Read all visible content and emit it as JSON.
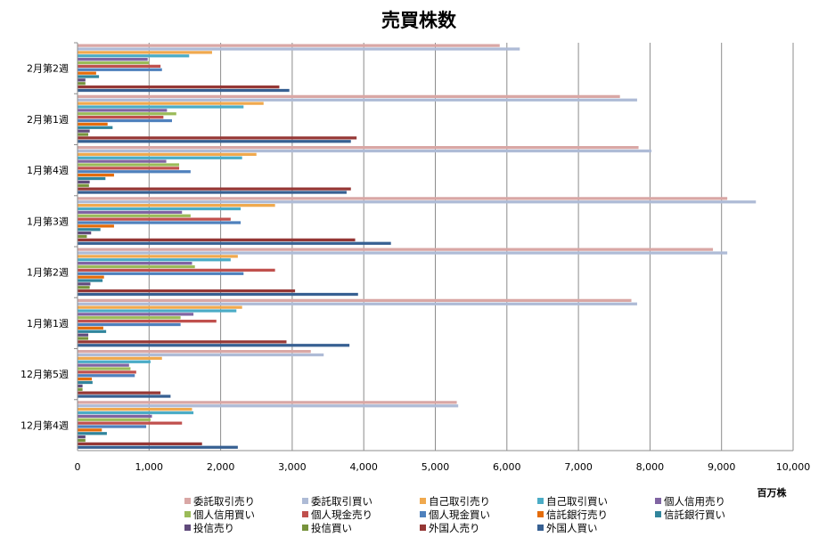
{
  "chart_data": {
    "type": "bar",
    "orientation": "horizontal",
    "title": "売買株数",
    "unit_label": "百万株",
    "xlim": [
      0,
      10000
    ],
    "xticks": [
      "0",
      "1,000",
      "2,000",
      "3,000",
      "4,000",
      "5,000",
      "6,000",
      "7,000",
      "8,000",
      "9,000",
      "10,000"
    ],
    "grid": true,
    "legend_position": "bottom",
    "categories": [
      "2月第2週",
      "2月第1週",
      "1月第4週",
      "1月第3週",
      "1月第2週",
      "1月第1週",
      "12月第5週",
      "12月第4週"
    ],
    "series": [
      {
        "name": "委託取引売り",
        "color": "#d9a7a5",
        "values": [
          5900,
          7580,
          7840,
          9080,
          8880,
          7740,
          3260,
          5300
        ]
      },
      {
        "name": "委託取引買い",
        "color": "#aebbd6",
        "values": [
          6180,
          7820,
          8020,
          9480,
          9080,
          7820,
          3440,
          5320
        ]
      },
      {
        "name": "自己取引売り",
        "color": "#f0a94e",
        "values": [
          1880,
          2600,
          2500,
          2760,
          2240,
          2300,
          1180,
          1600
        ]
      },
      {
        "name": "自己取引買い",
        "color": "#4bacc6",
        "values": [
          1560,
          2320,
          2300,
          2280,
          2140,
          2220,
          1020,
          1620
        ]
      },
      {
        "name": "個人信用売り",
        "color": "#8064a2",
        "values": [
          980,
          1250,
          1240,
          1460,
          1600,
          1620,
          720,
          1040
        ]
      },
      {
        "name": "個人信用買い",
        "color": "#9bbb59",
        "values": [
          1000,
          1380,
          1420,
          1580,
          1640,
          1440,
          740,
          1020
        ]
      },
      {
        "name": "個人現金売り",
        "color": "#c0504d",
        "values": [
          1160,
          1200,
          1420,
          2140,
          2760,
          1940,
          820,
          1460
        ]
      },
      {
        "name": "個人現金買い",
        "color": "#4f81bd",
        "values": [
          1180,
          1320,
          1580,
          2280,
          2320,
          1440,
          800,
          960
        ]
      },
      {
        "name": "信託銀行売り",
        "color": "#e46c0a",
        "values": [
          260,
          420,
          510,
          510,
          370,
          360,
          200,
          340
        ]
      },
      {
        "name": "信託銀行買い",
        "color": "#31859c",
        "values": [
          300,
          490,
          390,
          320,
          350,
          400,
          210,
          410
        ]
      },
      {
        "name": "投信売り",
        "color": "#604a7b",
        "values": [
          110,
          170,
          170,
          190,
          180,
          150,
          70,
          110
        ]
      },
      {
        "name": "投信買い",
        "color": "#77933c",
        "values": [
          110,
          150,
          160,
          130,
          170,
          150,
          70,
          110
        ]
      },
      {
        "name": "外国人売り",
        "color": "#953735",
        "values": [
          2820,
          3900,
          3820,
          3880,
          3040,
          2920,
          1160,
          1740
        ]
      },
      {
        "name": "外国人買い",
        "color": "#376092",
        "values": [
          2960,
          3820,
          3760,
          4380,
          3920,
          3800,
          1300,
          2240
        ]
      }
    ]
  }
}
